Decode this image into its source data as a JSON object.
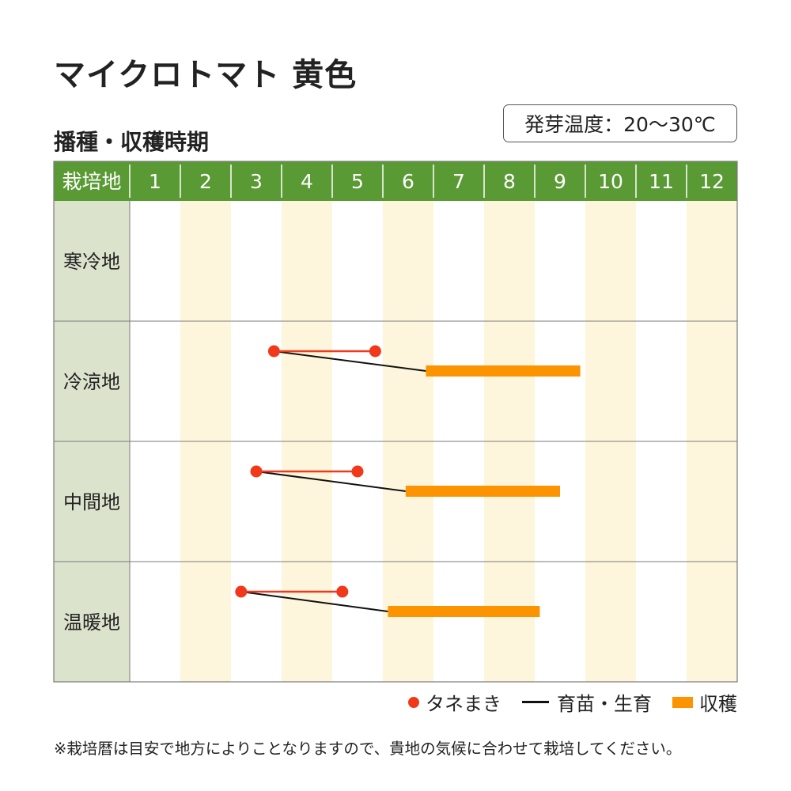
{
  "title": "マイクロトマト 黄色",
  "subtitle": "播種・収穫時期",
  "germination_temp": "発芽温度：20〜30℃",
  "colors": {
    "header_green": "#5a9a34",
    "region_bg": "#dce3cd",
    "stripe": "#fdf6dc",
    "sowing_red": "#f2381a",
    "harvest_orange": "#fb9400",
    "grid": "#7a7a7a",
    "seedling_line": "#111111"
  },
  "legend": {
    "sowing": "タネまき",
    "seedling": "育苗・生育",
    "harvest": "収穫"
  },
  "footnote": "※栽培暦は目安で地方によりことなりますので、貴地の気候に合わせて栽培してください。",
  "chart_data": {
    "type": "table",
    "header_label": "栽培地",
    "months": [
      "1",
      "2",
      "3",
      "4",
      "5",
      "6",
      "7",
      "8",
      "9",
      "10",
      "11",
      "12"
    ],
    "regions": [
      {
        "name": "寒冷地",
        "sowing": null,
        "harvest": null
      },
      {
        "name": "冷涼地",
        "sowing": [
          3.85,
          5.85
        ],
        "harvest": [
          6.85,
          9.9
        ]
      },
      {
        "name": "中間地",
        "sowing": [
          3.5,
          5.5
        ],
        "harvest": [
          6.45,
          9.5
        ]
      },
      {
        "name": "温暖地",
        "sowing": [
          3.2,
          5.2
        ],
        "harvest": [
          6.1,
          9.1
        ]
      }
    ],
    "grid": true,
    "legend_position": "bottom-right"
  }
}
